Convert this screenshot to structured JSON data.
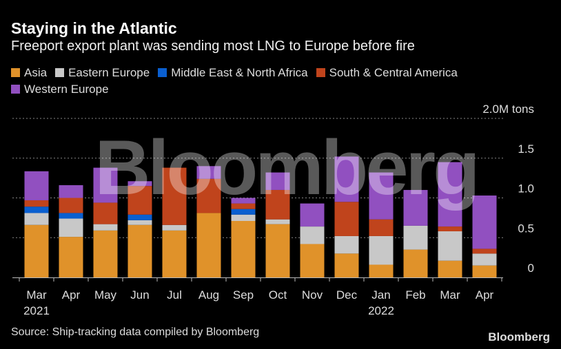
{
  "title": "Staying in the Atlantic",
  "subtitle": "Freeport export plant was sending most LNG to Europe before fire",
  "source": "Source: Ship-tracking data compiled by Bloomberg",
  "logo": "Bloomberg",
  "watermark": "Bloomberg",
  "chart_data": {
    "type": "bar",
    "stacked": true,
    "categories": [
      "Mar",
      "Apr",
      "May",
      "Jun",
      "Jul",
      "Aug",
      "Sep",
      "Oct",
      "Nov",
      "Dec",
      "Jan",
      "Feb",
      "Mar",
      "Apr"
    ],
    "year_labels": [
      {
        "index": 0,
        "label": "2021"
      },
      {
        "index": 10,
        "label": "2022"
      }
    ],
    "ylim": [
      0,
      2.0
    ],
    "yticks": [
      {
        "v": 0,
        "label": "0"
      },
      {
        "v": 0.5,
        "label": "0.5"
      },
      {
        "v": 1.0,
        "label": "1.0"
      },
      {
        "v": 1.5,
        "label": "1.5"
      },
      {
        "v": 2.0,
        "label": "2.0M tons"
      }
    ],
    "grid": true,
    "legend_position": "top",
    "series": [
      {
        "name": "Asia",
        "color": "#e0922a",
        "values": [
          0.66,
          0.51,
          0.59,
          0.66,
          0.59,
          0.81,
          0.71,
          0.67,
          0.42,
          0.3,
          0.16,
          0.35,
          0.21,
          0.15
        ]
      },
      {
        "name": "Eastern Europe",
        "color": "#c8c8c8",
        "values": [
          0.15,
          0.23,
          0.08,
          0.06,
          0.07,
          0,
          0.08,
          0.06,
          0.22,
          0.22,
          0.36,
          0.3,
          0.37,
          0.15
        ]
      },
      {
        "name": "Middle East & North Africa",
        "color": "#0a5fd0",
        "values": [
          0.08,
          0.07,
          0,
          0.07,
          0,
          0,
          0.07,
          0,
          0,
          0,
          0,
          0,
          0,
          0
        ]
      },
      {
        "name": "South & Central America",
        "color": "#c0441c",
        "values": [
          0.08,
          0.19,
          0.27,
          0.36,
          0.72,
          0.43,
          0.07,
          0.37,
          0,
          0.43,
          0.21,
          0,
          0.06,
          0.06
        ]
      },
      {
        "name": "Western Europe",
        "color": "#9150c0",
        "values": [
          0.365,
          0.16,
          0.44,
          0.06,
          0,
          0.16,
          0.07,
          0.22,
          0.29,
          0.57,
          0.59,
          0.45,
          0.81,
          0.67
        ]
      }
    ]
  }
}
